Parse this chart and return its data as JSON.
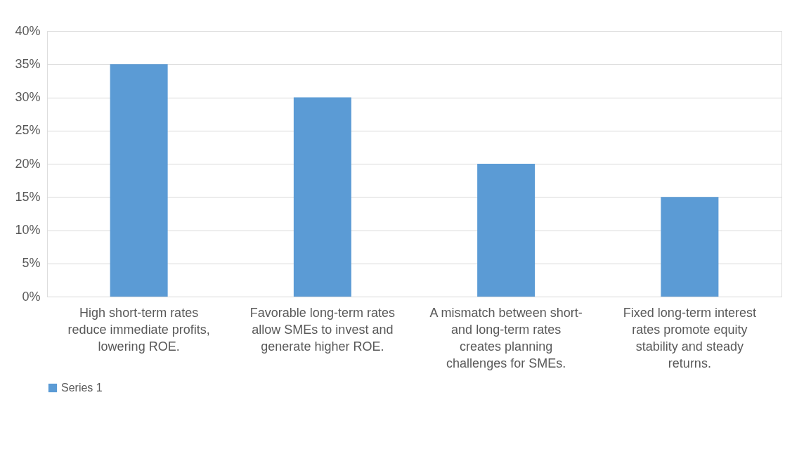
{
  "chart_data": {
    "type": "bar",
    "categories": [
      "High short-term rates reduce immediate profits, lowering ROE.",
      "Favorable long-term rates allow SMEs to invest and generate higher ROE.",
      "A mismatch between short- and long-term rates creates planning challenges for SMEs.",
      "Fixed long-term interest rates promote equity stability and steady returns."
    ],
    "series": [
      {
        "name": "Series 1",
        "color": "#5b9bd5",
        "values": [
          35,
          30,
          20,
          15
        ]
      }
    ],
    "ylim": [
      0,
      40
    ],
    "yticks": [
      {
        "value": 0,
        "label": "0%"
      },
      {
        "value": 5,
        "label": "5%"
      },
      {
        "value": 10,
        "label": "10%"
      },
      {
        "value": 15,
        "label": "15%"
      },
      {
        "value": 20,
        "label": "20%"
      },
      {
        "value": 25,
        "label": "25%"
      },
      {
        "value": 30,
        "label": "30%"
      },
      {
        "value": 35,
        "label": "35%"
      },
      {
        "value": 40,
        "label": "40%"
      }
    ],
    "grid": "y",
    "legend": "bottom"
  }
}
